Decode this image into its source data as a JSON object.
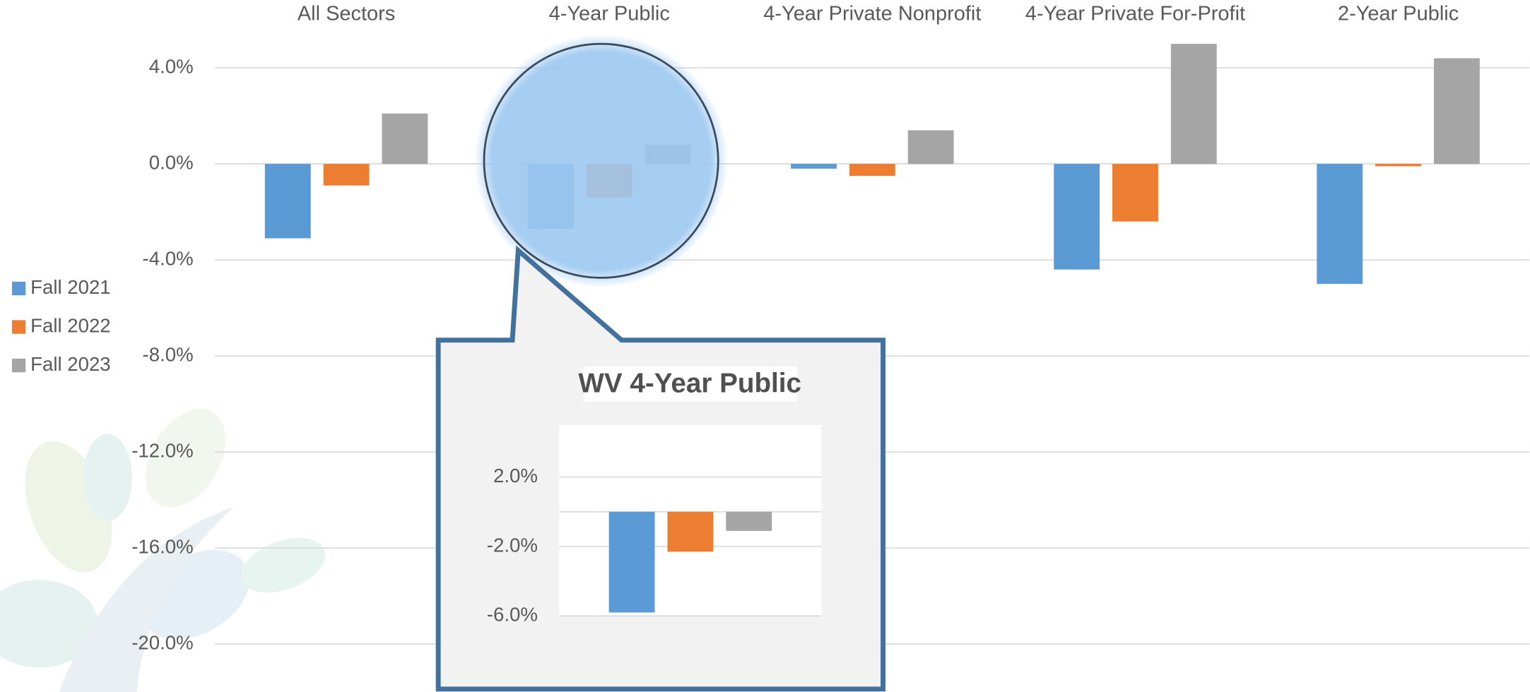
{
  "chart_data": [
    {
      "type": "bar",
      "categories": [
        "All Sectors",
        "4-Year Public",
        "4-Year Private Nonprofit",
        "4-Year Private For-Profit",
        "2-Year Public"
      ],
      "series": [
        {
          "name": "Fall 2021",
          "color": "#5b9bd5",
          "values": [
            -3.1,
            -2.7,
            -0.2,
            -4.4,
            -5.0
          ]
        },
        {
          "name": "Fall 2022",
          "color": "#ed7d31",
          "values": [
            -0.9,
            -1.4,
            -0.5,
            -2.4,
            -0.1
          ]
        },
        {
          "name": "Fall 2023",
          "color": "#a5a5a5",
          "values": [
            2.1,
            0.8,
            1.4,
            5.0,
            4.4
          ]
        }
      ],
      "ylim": [
        -22,
        5
      ],
      "yticks": [
        {
          "value": 4,
          "label": "4.0%"
        },
        {
          "value": 0,
          "label": "0.0%"
        },
        {
          "value": -4,
          "label": "-4.0%"
        },
        {
          "value": -8,
          "label": "-8.0%"
        },
        {
          "value": -12,
          "label": "-12.0%"
        },
        {
          "value": -16,
          "label": "-16.0%"
        },
        {
          "value": -20,
          "label": "-20.0%"
        }
      ],
      "grid": true,
      "legend": "left"
    },
    {
      "type": "bar",
      "title": "WV 4-Year Public",
      "series": [
        {
          "color": "#5b9bd5",
          "values": [
            -5.8
          ]
        },
        {
          "color": "#ed7d31",
          "values": [
            -2.3
          ]
        },
        {
          "color": "#a5a5a5",
          "values": [
            -1.1
          ]
        }
      ],
      "ylim": [
        -6,
        5
      ],
      "yticks": [
        {
          "value": 2,
          "label": "2.0%"
        },
        {
          "value": -2,
          "label": "-2.0%"
        },
        {
          "value": -6,
          "label": "-6.0%"
        }
      ],
      "grid": true
    }
  ]
}
